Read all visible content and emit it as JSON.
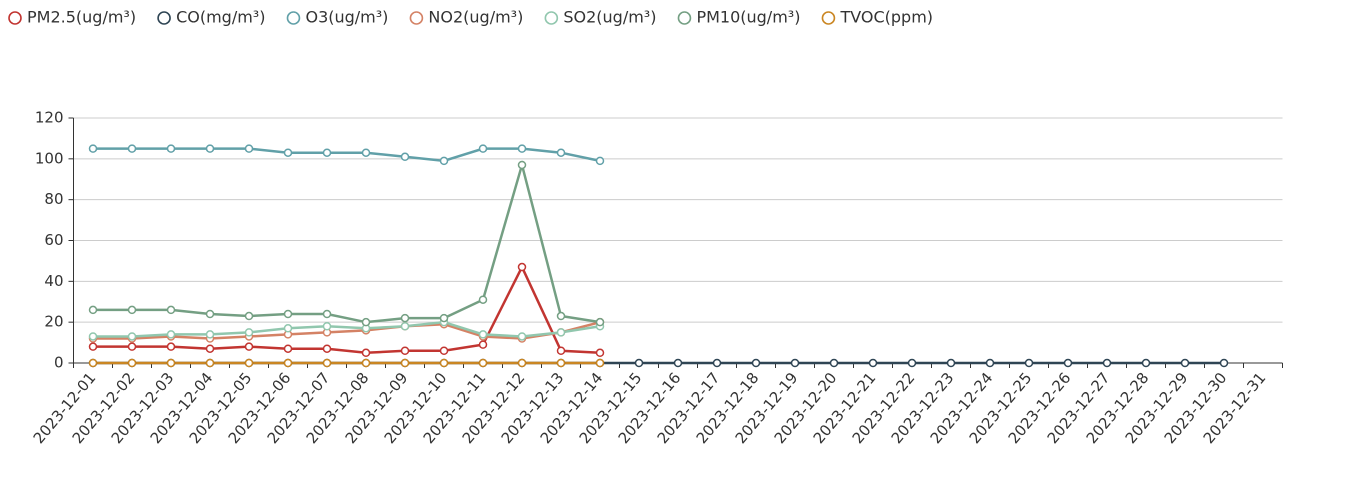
{
  "chart_data": {
    "type": "line",
    "categories": [
      "2023-12-01",
      "2023-12-02",
      "2023-12-03",
      "2023-12-04",
      "2023-12-05",
      "2023-12-06",
      "2023-12-07",
      "2023-12-08",
      "2023-12-09",
      "2023-12-10",
      "2023-12-11",
      "2023-12-12",
      "2023-12-13",
      "2023-12-14",
      "2023-12-15",
      "2023-12-16",
      "2023-12-17",
      "2023-12-18",
      "2023-12-19",
      "2023-12-20",
      "2023-12-21",
      "2023-12-22",
      "2023-12-23",
      "2023-12-24",
      "2023-12-25",
      "2023-12-26",
      "2023-12-27",
      "2023-12-28",
      "2023-12-29",
      "2023-12-30",
      "2023-12-31"
    ],
    "series": [
      {
        "name": "PM2.5(ug/m³)",
        "color": "#c23531",
        "values": [
          8,
          8,
          8,
          7,
          8,
          7,
          7,
          5,
          6,
          6,
          9,
          47,
          6,
          5,
          null,
          null,
          null,
          null,
          null,
          null,
          null,
          null,
          null,
          null,
          null,
          null,
          null,
          null,
          null,
          null,
          null
        ]
      },
      {
        "name": "CO(mg/m³)",
        "color": "#2f4554",
        "values": [
          0,
          0,
          0,
          0,
          0,
          0,
          0,
          0,
          0,
          0,
          0,
          0,
          0,
          0,
          0,
          0,
          0,
          0,
          0,
          0,
          0,
          0,
          0,
          0,
          0,
          0,
          0,
          0,
          0,
          0,
          null
        ]
      },
      {
        "name": "O3(ug/m³)",
        "color": "#61a0a8",
        "values": [
          105,
          105,
          105,
          105,
          105,
          103,
          103,
          103,
          101,
          99,
          105,
          105,
          103,
          99,
          null,
          null,
          null,
          null,
          null,
          null,
          null,
          null,
          null,
          null,
          null,
          null,
          null,
          null,
          null,
          null,
          null
        ]
      },
      {
        "name": "NO2(ug/m³)",
        "color": "#d48265",
        "values": [
          12,
          12,
          13,
          12,
          13,
          14,
          15,
          16,
          18,
          19,
          13,
          12,
          15,
          20,
          null,
          null,
          null,
          null,
          null,
          null,
          null,
          null,
          null,
          null,
          null,
          null,
          null,
          null,
          null,
          null,
          null
        ]
      },
      {
        "name": "SO2(ug/m³)",
        "color": "#91c7ae",
        "values": [
          13,
          13,
          14,
          14,
          15,
          17,
          18,
          17,
          18,
          20,
          14,
          13,
          15,
          18,
          null,
          null,
          null,
          null,
          null,
          null,
          null,
          null,
          null,
          null,
          null,
          null,
          null,
          null,
          null,
          null,
          null
        ]
      },
      {
        "name": "PM10(ug/m³)",
        "color": "#749f83",
        "values": [
          26,
          26,
          26,
          24,
          23,
          24,
          24,
          20,
          22,
          22,
          31,
          97,
          23,
          20,
          null,
          null,
          null,
          null,
          null,
          null,
          null,
          null,
          null,
          null,
          null,
          null,
          null,
          null,
          null,
          null,
          null
        ]
      },
      {
        "name": "TVOC(ppm)",
        "color": "#ca8622",
        "values": [
          0,
          0,
          0,
          0,
          0,
          0,
          0,
          0,
          0,
          0,
          0,
          0,
          0,
          0,
          null,
          null,
          null,
          null,
          null,
          null,
          null,
          null,
          null,
          null,
          null,
          null,
          null,
          null,
          null,
          null,
          null
        ]
      }
    ],
    "ylim": [
      0,
      120
    ],
    "yticks": [
      0,
      20,
      40,
      60,
      80,
      100,
      120
    ],
    "grid": true,
    "legend": "top"
  }
}
